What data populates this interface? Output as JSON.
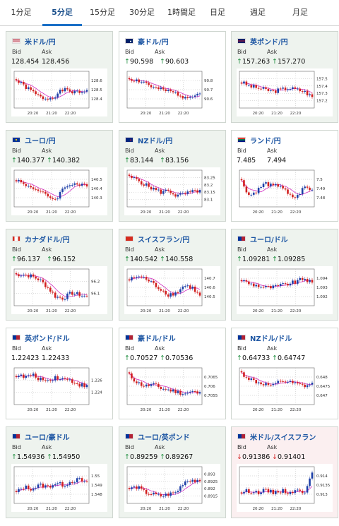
{
  "tabs": [
    "1分足",
    "5分足",
    "15分足",
    "30分足",
    "1時間足",
    "日足",
    "週足",
    "月足"
  ],
  "active_tab": 1,
  "labels": {
    "bid": "Bid",
    "ask": "Ask"
  },
  "colors": {
    "up": "#1d8d3d",
    "down": "#d11f1f",
    "title": "#1d56a3",
    "candle_up": "#1d3fa8",
    "candle_down": "#d11f1f",
    "ma": "#d12bc0",
    "tab_accent": "#1a6fc7"
  },
  "cards": [
    {
      "pair": "米ドル/円",
      "flag": "flag-us",
      "bid": "128.454",
      "ask": "128.456",
      "dir": "none",
      "bg": "green",
      "ticks": [
        "128.6",
        "128.5",
        "128.4"
      ],
      "xticks": [
        "20:20",
        "21:20",
        "22:20"
      ]
    },
    {
      "pair": "豪ドル/円",
      "flag": "flag-au",
      "bid": "90.598",
      "ask": "90.603",
      "dir": "up",
      "bg": "white",
      "ticks": [
        "90.8",
        "90.7",
        "90.6"
      ],
      "xticks": [
        "20:20",
        "21:20",
        "22:20"
      ]
    },
    {
      "pair": "英ポンド/円",
      "flag": "flag-gb",
      "bid": "157.263",
      "ask": "157.270",
      "dir": "up",
      "bg": "green",
      "ticks": [
        "157.5",
        "157.4",
        "157.3",
        "157.2"
      ],
      "xticks": [
        "20:20",
        "21:20",
        "22:20"
      ]
    },
    {
      "pair": "ユーロ/円",
      "flag": "flag-eu",
      "bid": "140.377",
      "ask": "140.382",
      "dir": "up",
      "bg": "green",
      "ticks": [
        "140.5",
        "140.4",
        "140.3"
      ],
      "xticks": [
        "20:20",
        "21:20",
        "22:20"
      ]
    },
    {
      "pair": "NZドル/円",
      "flag": "flag-nz",
      "bid": "83.144",
      "ask": "83.156",
      "dir": "up",
      "bg": "green",
      "ticks": [
        "83.25",
        "83.2",
        "83.15",
        "83.1"
      ],
      "xticks": [
        "20:20",
        "21:20",
        "22:20"
      ]
    },
    {
      "pair": "ランド/円",
      "flag": "flag-za",
      "bid": "7.485",
      "ask": "7.494",
      "dir": "none",
      "bg": "white",
      "ticks": [
        "7.5",
        "7.49",
        "7.48"
      ],
      "xticks": [
        "20:20",
        "21:20",
        "22:20"
      ]
    },
    {
      "pair": "カナダドル/円",
      "flag": "flag-ca",
      "bid": "96.137",
      "ask": "96.152",
      "dir": "up",
      "bg": "green",
      "ticks": [
        "96.2",
        "96.1"
      ],
      "xticks": [
        "20:20",
        "21:20",
        "22:20"
      ]
    },
    {
      "pair": "スイスフラン/円",
      "flag": "flag-ch",
      "bid": "140.542",
      "ask": "140.558",
      "dir": "up",
      "bg": "green",
      "ticks": [
        "140.7",
        "140.6",
        "140.5"
      ],
      "xticks": [
        "20:20",
        "21:20",
        "22:20"
      ]
    },
    {
      "pair": "ユーロ/ドル",
      "flag": "flag-eu-us",
      "bid": "1.09281",
      "ask": "1.09285",
      "dir": "up",
      "bg": "green",
      "ticks": [
        "1.094",
        "1.093",
        "1.092"
      ],
      "xticks": [
        "20:20",
        "21:20",
        "22:20"
      ]
    },
    {
      "pair": "英ポンド/ドル",
      "flag": "flag-gb-us",
      "bid": "1.22423",
      "ask": "1.22433",
      "dir": "none",
      "bg": "white",
      "ticks": [
        "1.226",
        "1.224"
      ],
      "xticks": [
        "20:20",
        "21:20",
        "22:20"
      ]
    },
    {
      "pair": "豪ドル/ドル",
      "flag": "flag-au-us",
      "bid": "0.70527",
      "ask": "0.70536",
      "dir": "up",
      "bg": "white",
      "ticks": [
        "0.7065",
        "0.706",
        "0.7055"
      ],
      "xticks": [
        "20:20",
        "21:20",
        "22:20"
      ]
    },
    {
      "pair": "NZドル/ドル",
      "flag": "flag-nz-us",
      "bid": "0.64733",
      "ask": "0.64747",
      "dir": "up",
      "bg": "white",
      "ticks": [
        "0.648",
        "0.6475",
        "0.647"
      ],
      "xticks": [
        "20:20",
        "21:20",
        "22:20"
      ]
    },
    {
      "pair": "ユーロ/豪ドル",
      "flag": "flag-eu-au",
      "bid": "1.54936",
      "ask": "1.54950",
      "dir": "up",
      "bg": "green",
      "ticks": [
        "1.55",
        "1.549",
        "1.548"
      ],
      "xticks": [
        "20:20",
        "21:20",
        "22:20"
      ]
    },
    {
      "pair": "ユーロ/英ポンド",
      "flag": "flag-eu-gb",
      "bid": "0.89259",
      "ask": "0.89267",
      "dir": "up",
      "bg": "green",
      "ticks": [
        "0.893",
        "0.8925",
        "0.892",
        "0.8915"
      ],
      "xticks": [
        "20:20",
        "21:20",
        "22:20"
      ]
    },
    {
      "pair": "米ドル/スイスフラン",
      "flag": "flag-us-ch",
      "bid": "0.91386",
      "ask": "0.91401",
      "dir": "down",
      "bg": "pink",
      "ticks": [
        "0.914",
        "0.9135",
        "0.913"
      ],
      "xticks": [
        "20:20",
        "21:20",
        "22:20"
      ]
    }
  ]
}
